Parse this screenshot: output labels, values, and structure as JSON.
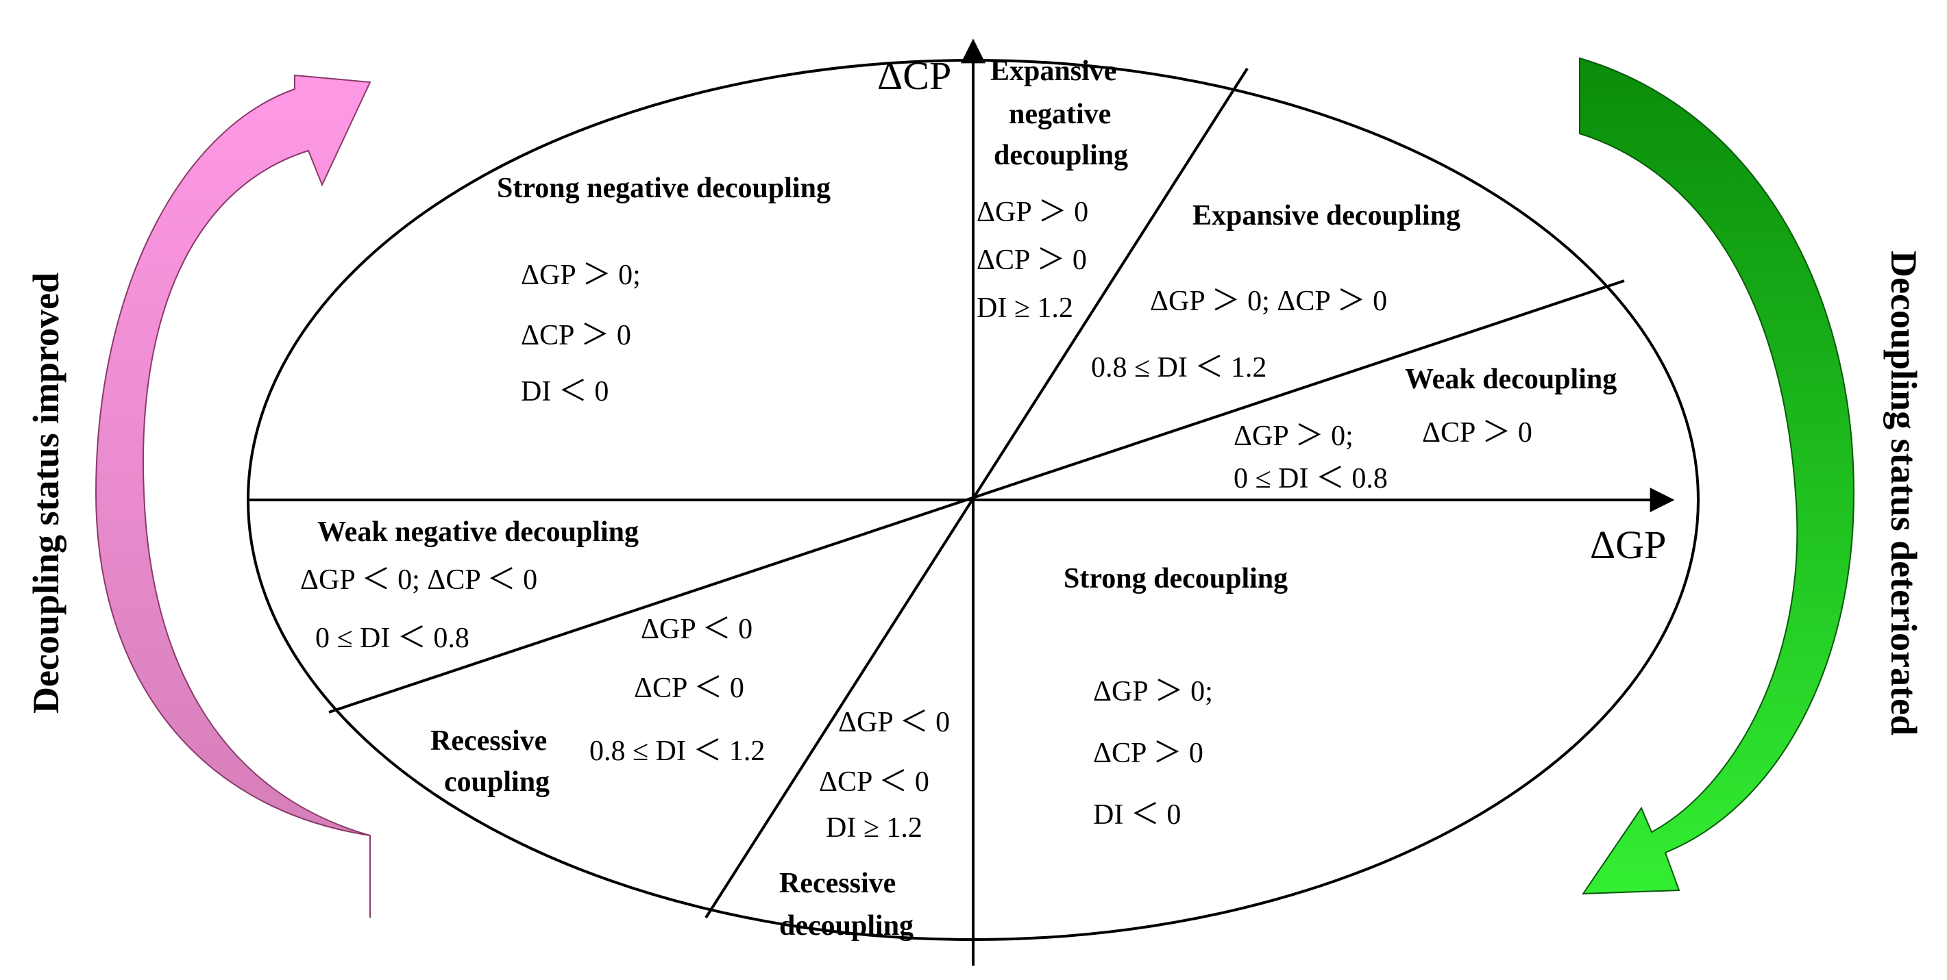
{
  "axes": {
    "x_label": "ΔGP",
    "y_label": "ΔCP"
  },
  "side_labels": {
    "left": "Decoupling status improved",
    "right": "Decoupling status deteriorated"
  },
  "colors": {
    "improved_arrow_top": "#ff99e6",
    "improved_arrow_bottom": "#d27cb4",
    "deteriorated_arrow_top": "#0a8c0a",
    "deteriorated_arrow_bottom": "#33ee33",
    "lines": "#000000"
  },
  "zones": {
    "strong_negative": {
      "title": "Strong negative decoupling",
      "cond1": "ΔGP ＞ 0;",
      "cond2": "ΔCP ＞ 0",
      "cond3": "DI ＜ 0"
    },
    "expansive_negative": {
      "title1": "Expansive",
      "title2": "negative",
      "title3": "decoupling",
      "cond1": "ΔGP ＞ 0",
      "cond2": "ΔCP ＞ 0",
      "cond3": "DI ≥ 1.2"
    },
    "expansive": {
      "title": "Expansive decoupling",
      "cond1": "ΔGP ＞ 0;  ΔCP ＞ 0",
      "cond2": "0.8 ≤ DI ＜ 1.2"
    },
    "weak": {
      "title": "Weak decoupling",
      "cond1": "ΔGP ＞ 0;",
      "cond2": "ΔCP ＞ 0",
      "cond3": "0 ≤ DI ＜ 0.8"
    },
    "strong": {
      "title": "Strong decoupling",
      "cond1": "ΔGP ＞ 0;",
      "cond2": "ΔCP ＞ 0",
      "cond3": "DI ＜ 0"
    },
    "weak_negative": {
      "title": "Weak negative decoupling",
      "cond1": "ΔGP ＜ 0;  ΔCP ＜ 0",
      "cond2": "0 ≤ DI ＜ 0.8"
    },
    "recessive_coupling": {
      "title1": "Recessive",
      "title2": "coupling",
      "cond1": "ΔGP ＜ 0",
      "cond2": "ΔCP ＜ 0",
      "cond3": "0.8 ≤ DI ＜ 1.2"
    },
    "recessive_decoupling": {
      "title1": "Recessive",
      "title2": "decoupling",
      "cond1": "ΔGP ＜ 0",
      "cond2": "ΔCP ＜ 0",
      "cond3": "DI ≥ 1.2"
    }
  }
}
